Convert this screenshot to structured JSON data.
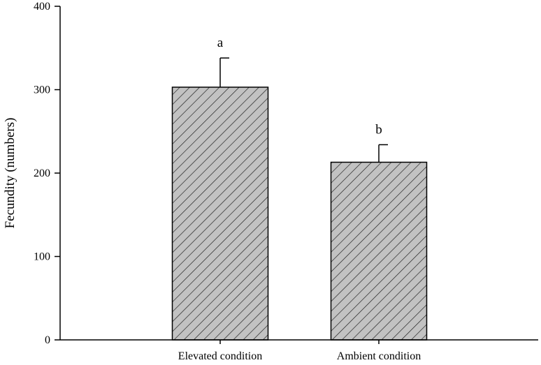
{
  "chart_data": {
    "type": "bar",
    "title": "",
    "xlabel": "",
    "ylabel": "Fecundity (numbers)",
    "categories": [
      "Elevated condition",
      "Ambient condition"
    ],
    "values": [
      303,
      213
    ],
    "error_upper": [
      338,
      234
    ],
    "significance_labels": [
      "a",
      "b"
    ],
    "ylim": [
      0,
      400
    ],
    "yticks": [
      "0",
      "100",
      "200",
      "300",
      "400"
    ],
    "grid": false,
    "bar_fill": "#c2c2c2",
    "hatch": "diagonal"
  }
}
